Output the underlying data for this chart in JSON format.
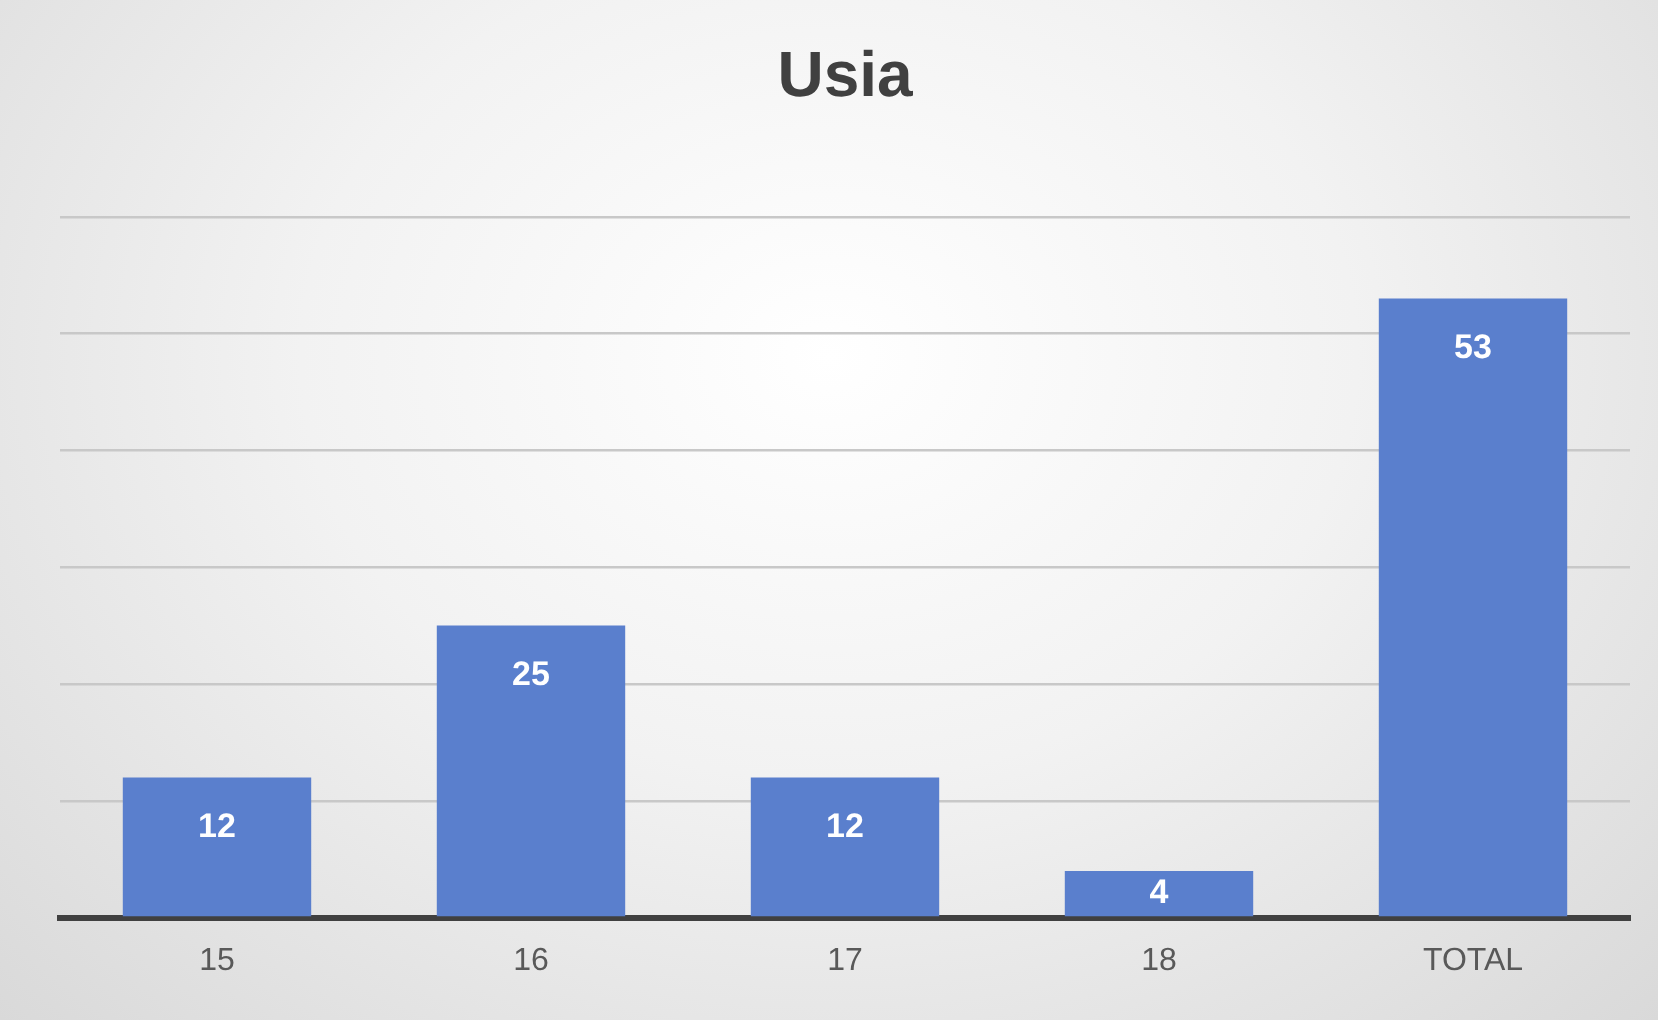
{
  "chart_data": {
    "type": "bar",
    "title": "Usia",
    "categories": [
      "15",
      "16",
      "17",
      "18",
      "TOTAL"
    ],
    "values": [
      12,
      25,
      12,
      4,
      53
    ],
    "color": "#5a7fcd",
    "data_labels": true,
    "ylim": [
      0,
      60
    ],
    "yticks": [
      {
        "value": 0,
        "label": null
      },
      {
        "value": 10,
        "label": null
      },
      {
        "value": 20,
        "label": null
      },
      {
        "value": 30,
        "label": null
      },
      {
        "value": 40,
        "label": null
      },
      {
        "value": 50,
        "label": null
      },
      {
        "value": 60,
        "label": null
      }
    ],
    "grid": "y",
    "tick_labels": "x",
    "legend": false
  }
}
